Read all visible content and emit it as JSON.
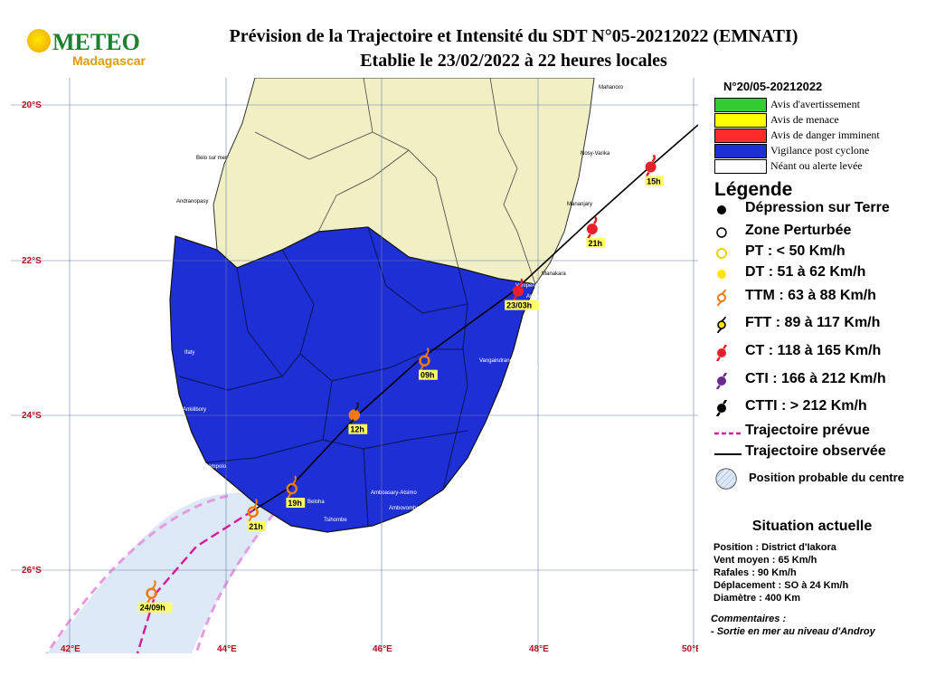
{
  "logo": {
    "text_top": "METEO",
    "text_bottom": "Madagascar"
  },
  "title": {
    "line1": "Prévision de la Trajectoire et Intensité du SDT N°05-20212022 (EMNATI)",
    "line2": "Etablie le 23/02/2022 à 22 heures locales"
  },
  "bulletin_number": "N°20/05-20212022",
  "alert_levels": [
    {
      "label": "Avis d'avertissement",
      "color": "#33cc33"
    },
    {
      "label": "Avis de menace",
      "color": "#ffff00"
    },
    {
      "label": "Avis de danger imminent",
      "color": "#ff2a2a"
    },
    {
      "label": "Vigilance post cyclone",
      "color": "#1f2fd6"
    },
    {
      "label": "Néant ou alerte levée",
      "color": "#ffffff"
    }
  ],
  "legend": {
    "title": "Légende",
    "items": [
      {
        "label": "Dépression sur Terre",
        "symbol": "filled-black-dot-icon"
      },
      {
        "label": "Zone Perturbée",
        "symbol": "hollow-circle-icon"
      },
      {
        "label": "PT : < 50 Km/h",
        "symbol": "hollow-yellow-circle-icon"
      },
      {
        "label": "DT : 51 à 62 Km/h",
        "symbol": "filled-yellow-dot-icon"
      },
      {
        "label": "TTM : 63 à 88 Km/h",
        "symbol": "orange-storm-icon"
      },
      {
        "label": "FTT : 89 à 117 Km/h",
        "symbol": "black-storm-icon"
      },
      {
        "label": "CT : 118 à 165 Km/h",
        "symbol": "red-cyclone-icon"
      },
      {
        "label": "CTI : 166 à 212 Km/h",
        "symbol": "purple-cyclone-icon"
      },
      {
        "label": "CTTI : > 212 Km/h",
        "symbol": "black-cyclone-icon"
      },
      {
        "label": "Trajectoire prévue",
        "symbol": "dashed-magenta-line-icon"
      },
      {
        "label": "Trajectoire observée",
        "symbol": "solid-black-line-icon"
      },
      {
        "label": "Position probable du centre",
        "symbol": "hatched-circle-icon"
      }
    ]
  },
  "situation": {
    "title": "Situation actuelle",
    "lines": [
      "Position : District d'Iakora",
      "Vent moyen : 65 Km/h",
      "Rafales : 90 Km/h",
      "Déplacement : SO à 24 Km/h",
      "Diamètre : 400 Km"
    ],
    "comment_title": "Commentaires :",
    "comment": "- Sortie en mer au niveau d'Androy"
  },
  "map": {
    "lat_labels": [
      "20°S",
      "22°S",
      "24°S",
      "26°S"
    ],
    "lon_labels": [
      "42°E",
      "44°E",
      "46°E",
      "48°E",
      "50°E"
    ],
    "towns": [
      "Mahanoro",
      "Nosy-Varika",
      "Mananjary",
      "Manakara",
      "Vohipeno",
      "Ampasivelo",
      "Farafangana",
      "Vangaindrano",
      "Ampatsinakoho",
      "Belo sur mer",
      "Andranopasy",
      "Ifaty",
      "Ankilibory",
      "Itampolo",
      "Beloha",
      "Tsihombe",
      "Ambovombe",
      "Amboasary-Atsimo"
    ],
    "track_points": [
      {
        "label": "15h",
        "lat": -20.8,
        "lon": 49.45,
        "kind": "CT"
      },
      {
        "label": "21h",
        "lat": -21.6,
        "lon": 48.7,
        "kind": "CT"
      },
      {
        "label": "23/03h",
        "lat": -22.4,
        "lon": 47.75,
        "kind": "CT"
      },
      {
        "label": "09h",
        "lat": -23.3,
        "lon": 46.55,
        "kind": "TTM"
      },
      {
        "label": "12h",
        "lat": -24.0,
        "lon": 45.65,
        "kind": "FTT"
      },
      {
        "label": "19h",
        "lat": -24.95,
        "lon": 44.85,
        "kind": "TTM"
      },
      {
        "label": "21h",
        "lat": -25.25,
        "lon": 44.35,
        "kind": "TTM"
      },
      {
        "label": "24/09h",
        "lat": -26.3,
        "lon": 43.05,
        "kind": "TTM"
      }
    ],
    "colors": {
      "sea": "#ffffff",
      "land_neutral": "#f1efc4",
      "alert_zone": "#1f2fd6",
      "uncertainty": "#dce9f5",
      "forecast_track": "#d81b9c",
      "observed_track": "#000000",
      "ct_marker": "#e8202a",
      "ttm_marker": "#f07a0a"
    }
  }
}
